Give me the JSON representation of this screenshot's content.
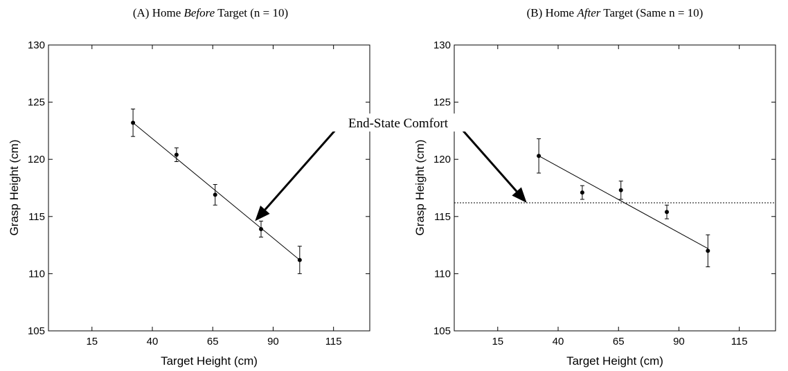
{
  "annotation": "End-State Comfort",
  "chart_data": [
    {
      "type": "scatter",
      "title_prefix": "(A) Home ",
      "title_italic": "Before",
      "title_suffix": " Target (n = 10)",
      "xlabel": "Target Height (cm)",
      "ylabel": "Grasp Height (cm)",
      "xlim": [
        -3,
        130
      ],
      "ylim": [
        105,
        130
      ],
      "xticks": [
        15,
        40,
        65,
        90,
        115
      ],
      "yticks": [
        105,
        110,
        115,
        120,
        125,
        130
      ],
      "points": [
        {
          "x": 32,
          "y": 123.2,
          "err": 1.2
        },
        {
          "x": 50,
          "y": 120.4,
          "err": 0.6
        },
        {
          "x": 66,
          "y": 116.9,
          "err": 0.9
        },
        {
          "x": 85,
          "y": 113.9,
          "err": 0.7
        },
        {
          "x": 101,
          "y": 111.2,
          "err": 1.2
        }
      ],
      "fit_line": {
        "x": [
          32,
          101
        ],
        "y": [
          123.2,
          111.2
        ]
      }
    },
    {
      "type": "scatter",
      "title_prefix": "(B) Home ",
      "title_italic": "After",
      "title_suffix": " Target (Same n = 10)",
      "xlabel": "Target Height (cm)",
      "ylabel": "Grasp Height (cm)",
      "xlim": [
        -3,
        130
      ],
      "ylim": [
        105,
        130
      ],
      "xticks": [
        15,
        40,
        65,
        90,
        115
      ],
      "yticks": [
        105,
        110,
        115,
        120,
        125,
        130
      ],
      "points": [
        {
          "x": 32,
          "y": 120.3,
          "err": 1.5
        },
        {
          "x": 50,
          "y": 117.1,
          "err": 0.6
        },
        {
          "x": 66,
          "y": 117.3,
          "err": 0.8
        },
        {
          "x": 85,
          "y": 115.4,
          "err": 0.6
        },
        {
          "x": 102,
          "y": 112.0,
          "err": 1.4
        }
      ],
      "fit_line": {
        "x": [
          32,
          102
        ],
        "y": [
          120.3,
          112.2
        ]
      },
      "reference_line_y": 116.2
    }
  ]
}
